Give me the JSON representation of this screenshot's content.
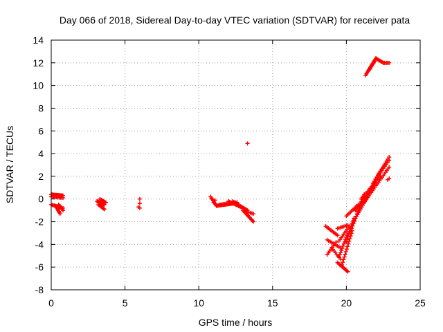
{
  "chart_data": {
    "type": "scatter",
    "title": "Day 066 of 2018, Sidereal Day-to-day VTEC variation (SDTVAR) for receiver pata",
    "xlabel": "GPS time / hours",
    "ylabel": "SDTVAR / TECUs",
    "xlim": [
      0,
      25
    ],
    "ylim": [
      -8,
      14
    ],
    "xticks": [
      0,
      5,
      10,
      15,
      20,
      25
    ],
    "yticks": [
      -8,
      -6,
      -4,
      -2,
      0,
      2,
      4,
      6,
      8,
      10,
      12,
      14
    ],
    "grid": true,
    "marker": "+",
    "color": "#ff0000",
    "series": [
      {
        "name": "SDTVAR",
        "segments": [
          {
            "from": [
              0.0,
              0.4
            ],
            "to": [
              0.8,
              0.3
            ],
            "n": 16
          },
          {
            "from": [
              0.0,
              0.2
            ],
            "to": [
              0.8,
              0.1
            ],
            "n": 10
          },
          {
            "from": [
              0.0,
              -0.5
            ],
            "to": [
              0.8,
              -0.8
            ],
            "n": 12
          },
          {
            "from": [
              0.3,
              -0.6
            ],
            "to": [
              0.6,
              -1.3
            ],
            "n": 8
          },
          {
            "from": [
              0.5,
              -0.5
            ],
            "to": [
              0.8,
              -1.0
            ],
            "n": 6
          },
          {
            "from": [
              3.1,
              -0.2
            ],
            "to": [
              3.6,
              -0.5
            ],
            "n": 10
          },
          {
            "from": [
              3.2,
              -0.5
            ],
            "to": [
              3.6,
              -0.9
            ],
            "n": 8
          },
          {
            "from": [
              3.3,
              0.0
            ],
            "to": [
              3.7,
              -0.3
            ],
            "n": 6
          },
          {
            "from": [
              10.8,
              0.2
            ],
            "to": [
              11.2,
              -0.6
            ],
            "n": 8
          },
          {
            "from": [
              11.2,
              -0.6
            ],
            "to": [
              12.3,
              -0.4
            ],
            "n": 18
          },
          {
            "from": [
              11.4,
              -0.5
            ],
            "to": [
              12.6,
              -0.3
            ],
            "n": 14
          },
          {
            "from": [
              12.0,
              -0.2
            ],
            "to": [
              13.0,
              -0.8
            ],
            "n": 14
          },
          {
            "from": [
              12.3,
              -0.2
            ],
            "to": [
              13.3,
              -1.0
            ],
            "n": 14
          },
          {
            "from": [
              13.0,
              -1.0
            ],
            "to": [
              13.7,
              -2.0
            ],
            "n": 12
          },
          {
            "from": [
              13.2,
              -1.1
            ],
            "to": [
              13.7,
              -1.3
            ],
            "n": 6
          },
          {
            "from": [
              18.6,
              -2.4
            ],
            "to": [
              19.4,
              -3.2
            ],
            "n": 10
          },
          {
            "from": [
              18.7,
              -3.6
            ],
            "to": [
              19.6,
              -4.3
            ],
            "n": 10
          },
          {
            "from": [
              18.7,
              -4.9
            ],
            "to": [
              19.3,
              -3.8
            ],
            "n": 8
          },
          {
            "from": [
              19.0,
              -4.3
            ],
            "to": [
              19.6,
              -5.3
            ],
            "n": 8
          },
          {
            "from": [
              19.4,
              -5.6
            ],
            "to": [
              20.1,
              -6.4
            ],
            "n": 10
          },
          {
            "from": [
              19.5,
              -5.1
            ],
            "to": [
              20.1,
              -3.0
            ],
            "n": 12
          },
          {
            "from": [
              19.5,
              -3.7
            ],
            "to": [
              20.2,
              -2.4
            ],
            "n": 10
          },
          {
            "from": [
              19.4,
              -2.6
            ],
            "to": [
              20.1,
              -2.3
            ],
            "n": 8
          },
          {
            "from": [
              19.7,
              -5.8
            ],
            "to": [
              20.4,
              -2.8
            ],
            "n": 14
          },
          {
            "from": [
              20.0,
              -3.8
            ],
            "to": [
              20.5,
              -1.7
            ],
            "n": 10
          },
          {
            "from": [
              20.0,
              -1.5
            ],
            "to": [
              20.8,
              -0.5
            ],
            "n": 10
          },
          {
            "from": [
              20.3,
              -2.8
            ],
            "to": [
              21.2,
              0.4
            ],
            "n": 16
          },
          {
            "from": [
              20.4,
              -2.2
            ],
            "to": [
              21.6,
              0.6
            ],
            "n": 18
          },
          {
            "from": [
              20.6,
              -1.0
            ],
            "to": [
              21.8,
              1.0
            ],
            "n": 16
          },
          {
            "from": [
              21.0,
              0.0
            ],
            "to": [
              22.3,
              2.0
            ],
            "n": 16
          },
          {
            "from": [
              21.4,
              0.3
            ],
            "to": [
              22.6,
              3.0
            ],
            "n": 18
          },
          {
            "from": [
              21.2,
              -0.3
            ],
            "to": [
              22.9,
              2.8
            ],
            "n": 22
          },
          {
            "from": [
              21.8,
              1.4
            ],
            "to": [
              22.9,
              3.7
            ],
            "n": 14
          },
          {
            "from": [
              22.2,
              2.2
            ],
            "to": [
              22.9,
              3.4
            ],
            "n": 8
          },
          {
            "from": [
              21.3,
              10.9
            ],
            "to": [
              22.0,
              12.4
            ],
            "n": 14
          },
          {
            "from": [
              21.5,
              11.3
            ],
            "to": [
              21.9,
              12.1
            ],
            "n": 8
          },
          {
            "from": [
              22.0,
              12.4
            ],
            "to": [
              22.5,
              12.0
            ],
            "n": 8
          },
          {
            "from": [
              22.5,
              12.0
            ],
            "to": [
              22.9,
              12.0
            ],
            "n": 6
          }
        ],
        "points": [
          [
            6.0,
            0.0
          ],
          [
            6.0,
            -0.4
          ],
          [
            6.0,
            -0.8
          ],
          [
            5.9,
            -0.7
          ],
          [
            13.3,
            4.9
          ],
          [
            22.9,
            1.8
          ],
          [
            22.8,
            1.7
          ],
          [
            11.0,
            -0.3
          ],
          [
            11.1,
            -0.1
          ]
        ]
      }
    ]
  }
}
